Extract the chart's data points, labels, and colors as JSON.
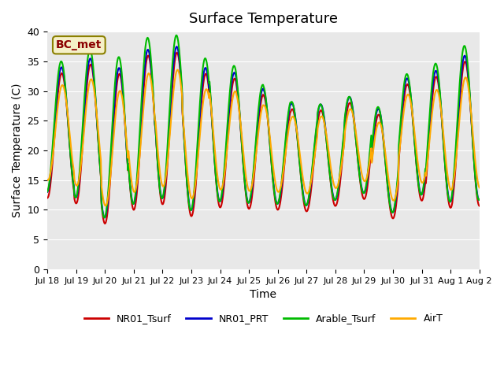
{
  "title": "Surface Temperature",
  "xlabel": "Time",
  "ylabel": "Surface Temperature (C)",
  "ylim": [
    0,
    40
  ],
  "yticks": [
    0,
    5,
    10,
    15,
    20,
    25,
    30,
    35,
    40
  ],
  "annotation": "BC_met",
  "background_color": "#e8e8e8",
  "lines": {
    "NR01_Tsurf": {
      "color": "#cc0000",
      "lw": 1.5
    },
    "NR01_PRT": {
      "color": "#0000cc",
      "lw": 1.5
    },
    "Arable_Tsurf": {
      "color": "#00bb00",
      "lw": 1.5
    },
    "AirT": {
      "color": "#ffaa00",
      "lw": 1.5
    }
  },
  "legend_order": [
    "NR01_Tsurf",
    "NR01_PRT",
    "Arable_Tsurf",
    "AirT"
  ],
  "xtick_labels": [
    "Jul 18",
    "Jul 19",
    "Jul 20",
    "Jul 21",
    "Jul 22",
    "Jul 23",
    "Jul 24",
    "Jul 25",
    "Jul 26",
    "Jul 27",
    "Jul 28",
    "Jul 29",
    "Jul 30",
    "Jul 31",
    "Aug 1",
    "Aug 2"
  ],
  "n_days": 15,
  "pts_per_day": 48
}
